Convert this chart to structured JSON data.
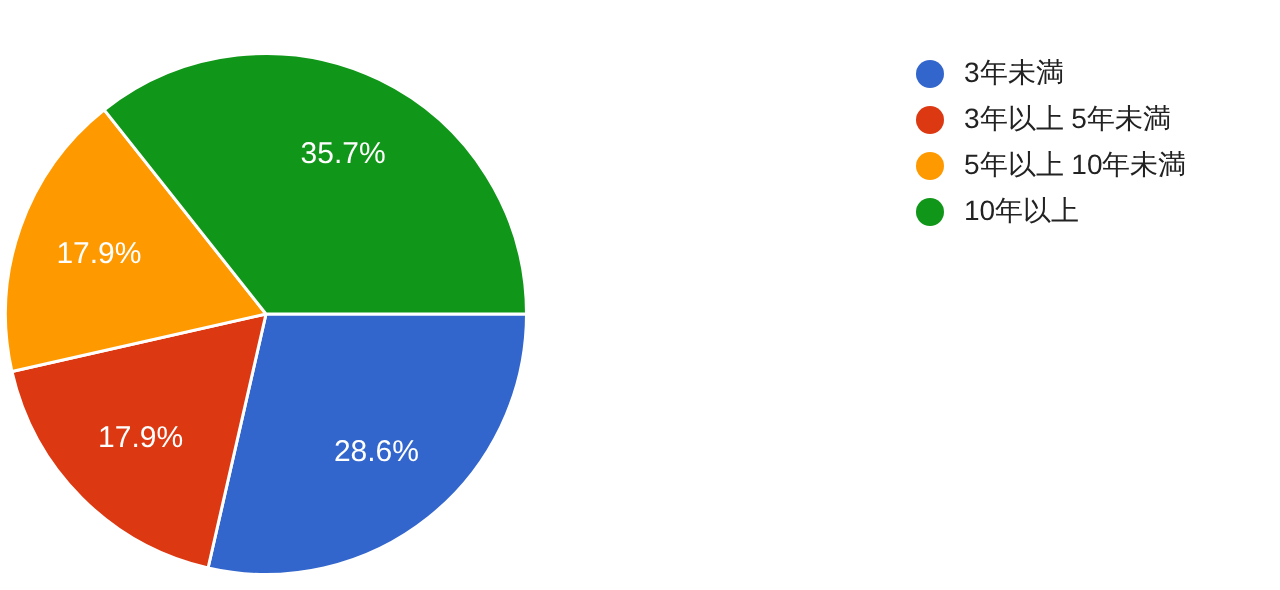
{
  "chart_data": {
    "type": "pie",
    "categories": [
      "3年未満",
      "3年以上 5年未満",
      "5年以上 10年未満",
      "10年以上"
    ],
    "values": [
      28.6,
      17.9,
      17.9,
      35.7
    ],
    "value_labels": [
      "28.6%",
      "17.9%",
      "17.9%",
      "35.7%"
    ],
    "colors": [
      "#3366cc",
      "#dc3912",
      "#ff9900",
      "#109618"
    ],
    "legend": "right"
  }
}
